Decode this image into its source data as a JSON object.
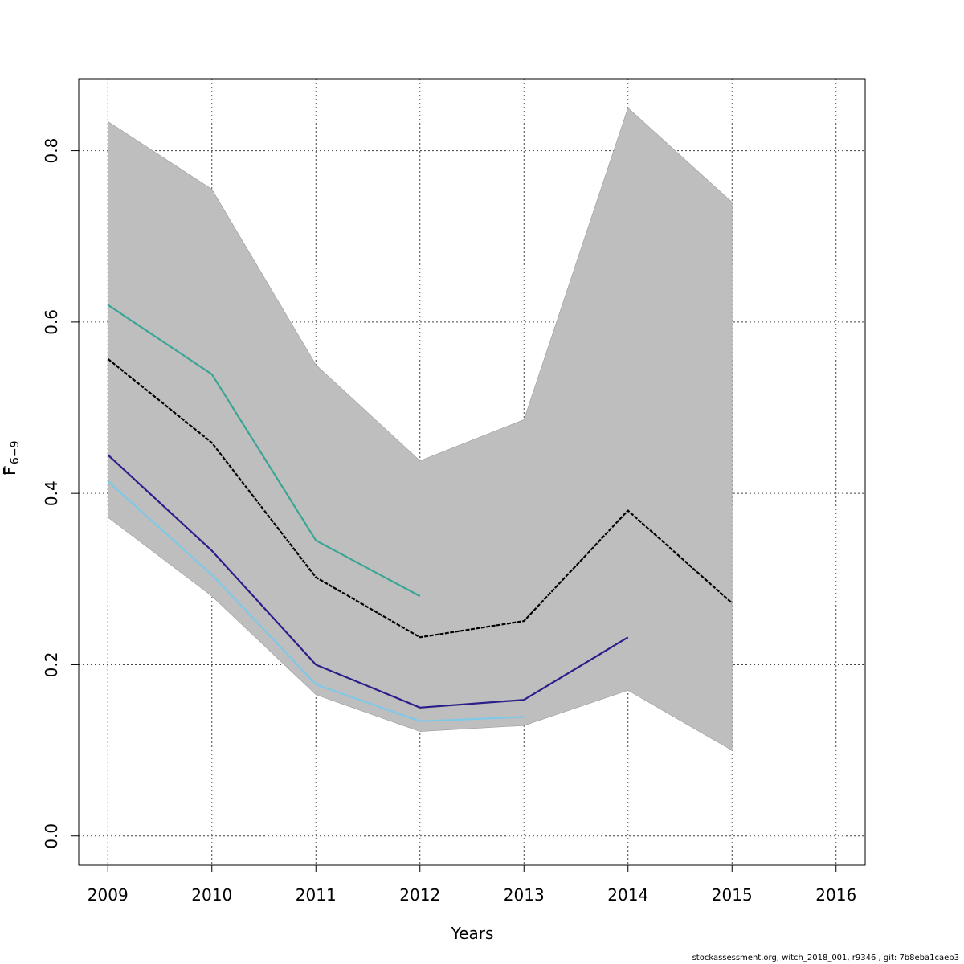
{
  "chart_data": {
    "type": "line",
    "xlabel": "Years",
    "ylabel": "F",
    "ylabel_sub": "6−9",
    "x_ticks": [
      2009,
      2010,
      2011,
      2012,
      2013,
      2014,
      2015,
      2016
    ],
    "y_ticks": [
      "0.0",
      "0.2",
      "0.4",
      "0.6",
      "0.8"
    ],
    "xlim": [
      2008.72,
      2016.28
    ],
    "ylim": [
      -0.034,
      0.884
    ],
    "grid": true,
    "band": {
      "x": [
        2009,
        2010,
        2011,
        2012,
        2013,
        2014,
        2015
      ],
      "lower": [
        0.372,
        0.28,
        0.165,
        0.122,
        0.129,
        0.17,
        0.1
      ],
      "upper": [
        0.834,
        0.755,
        0.55,
        0.438,
        0.486,
        0.85,
        0.74
      ],
      "color": "#bebebe"
    },
    "series": [
      {
        "x": [
          2009,
          2010,
          2011,
          2012,
          2013,
          2014,
          2015
        ],
        "values": [
          0.557,
          0.459,
          0.302,
          0.232,
          0.251,
          0.38,
          0.272
        ],
        "color": "#000000",
        "dashed": true
      },
      {
        "x": [
          2009,
          2010,
          2011,
          2012
        ],
        "values": [
          0.62,
          0.539,
          0.345,
          0.28
        ],
        "color": "#3aa595",
        "dashed": false
      },
      {
        "x": [
          2009,
          2010,
          2011,
          2012,
          2013,
          2014
        ],
        "values": [
          0.445,
          0.333,
          0.2,
          0.15,
          0.159,
          0.232
        ],
        "color": "#2a1f8a",
        "dashed": false
      },
      {
        "x": [
          2009,
          2010,
          2011,
          2012,
          2013
        ],
        "values": [
          0.414,
          0.305,
          0.177,
          0.134,
          0.139
        ],
        "color": "#7ec8e8",
        "dashed": false
      }
    ]
  },
  "footer": "stockassessment.org, witch_2018_001, r9346 , git: 7b8eba1caeb3"
}
